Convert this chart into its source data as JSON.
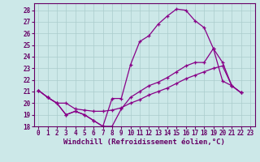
{
  "background_color": "#cce8e8",
  "grid_color": "#aacccc",
  "line_color": "#880088",
  "marker": "+",
  "xlabel": "Windchill (Refroidissement éolien,°C)",
  "xlabel_fontsize": 6.5,
  "ylim": [
    18,
    28.6
  ],
  "xlim": [
    -0.5,
    23.5
  ],
  "yticks": [
    18,
    19,
    20,
    21,
    22,
    23,
    24,
    25,
    26,
    27,
    28
  ],
  "xticks": [
    0,
    1,
    2,
    3,
    4,
    5,
    6,
    7,
    8,
    9,
    10,
    11,
    12,
    13,
    14,
    15,
    16,
    17,
    18,
    19,
    20,
    21,
    22,
    23
  ],
  "tick_fontsize": 5.5,
  "line1_x": [
    0,
    1,
    2,
    3,
    4,
    5,
    6,
    7,
    8,
    9,
    10,
    11,
    12,
    13,
    14,
    15,
    16,
    17,
    18,
    19,
    20,
    21,
    22
  ],
  "line1_y": [
    21.1,
    20.5,
    20.0,
    19.0,
    19.3,
    19.0,
    18.5,
    18.0,
    18.0,
    19.5,
    20.5,
    21.0,
    21.5,
    21.8,
    22.2,
    22.7,
    23.2,
    23.5,
    23.5,
    24.7,
    23.5,
    21.5,
    20.9
  ],
  "line2_x": [
    0,
    1,
    2,
    3,
    4,
    5,
    6,
    7,
    8,
    9,
    10,
    11,
    12,
    13,
    14,
    15,
    16,
    17,
    18,
    19,
    20,
    21,
    22
  ],
  "line2_y": [
    21.1,
    20.5,
    20.0,
    20.0,
    19.5,
    19.4,
    19.3,
    19.3,
    19.4,
    19.6,
    20.0,
    20.3,
    20.7,
    21.0,
    21.3,
    21.7,
    22.1,
    22.4,
    22.7,
    23.0,
    23.2,
    21.5,
    20.9
  ],
  "line3_x": [
    0,
    1,
    2,
    3,
    4,
    5,
    6,
    7,
    8,
    9,
    10,
    11,
    12,
    13,
    14,
    15,
    16,
    17,
    18,
    19,
    20,
    21,
    22
  ],
  "line3_y": [
    21.1,
    20.5,
    20.0,
    19.0,
    19.3,
    19.0,
    18.5,
    18.0,
    20.4,
    20.4,
    23.3,
    25.3,
    25.8,
    26.8,
    27.5,
    28.1,
    28.0,
    27.1,
    26.5,
    24.7,
    21.9,
    21.5,
    20.9
  ]
}
